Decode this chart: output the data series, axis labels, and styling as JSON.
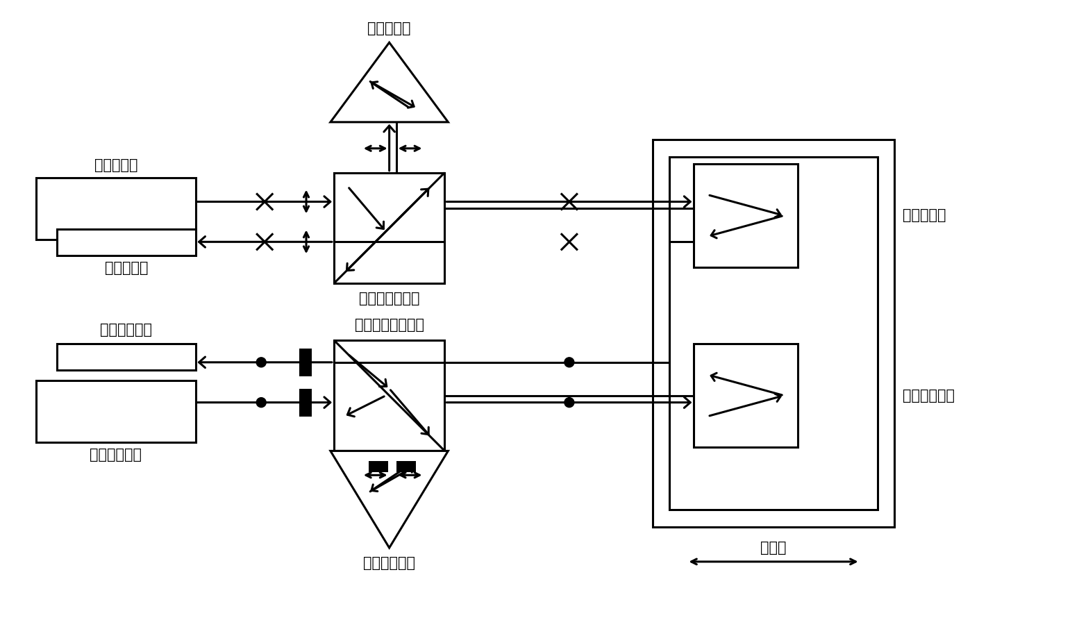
{
  "bg_color": "#ffffff",
  "line_color": "#000000",
  "labels": {
    "biazhun_jiguang": "标准激光器",
    "biazhun_jieshou": "标准接收器",
    "biazhun_pbs": "标准偏振分光镜",
    "biazhun_cankao": "标准参考镜",
    "biazhun_celiang": "标准测量镜",
    "jiaozhun_jiguang": "被校准激光器",
    "jiaozhun_jieshou": "被校准接收器",
    "jiaozhun_pbs": "被校准偏振分光镜",
    "jiaozhun_cankao": "被校准参考镜",
    "jiaozhun_celiang": "被校准测量镜",
    "yuntai": "运动台"
  },
  "figsize": [
    15.54,
    9.16
  ],
  "dpi": 100,
  "lw": 2.2,
  "fontsize": 15
}
